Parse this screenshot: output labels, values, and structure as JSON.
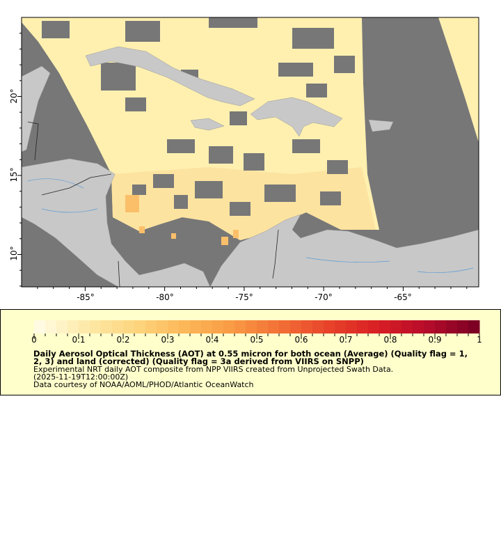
{
  "map": {
    "lon_range": [
      -89,
      -60.3
    ],
    "lat_range": [
      7.9,
      25
    ],
    "x_ticks": [
      "-85°",
      "-80°",
      "-75°",
      "-70°",
      "-65°"
    ],
    "y_ticks": [
      "20°",
      "15°",
      "10°"
    ],
    "colors": {
      "no_data": "#777777",
      "land": "#c8c8c8",
      "rivers": "#5b9bd5",
      "borders": "#222222"
    }
  },
  "legend": {
    "colorbar_ticks": [
      "0",
      "0.1",
      "0.2",
      "0.3",
      "0.4",
      "0.5",
      "0.6",
      "0.7",
      "0.8",
      "0.9",
      "1"
    ],
    "colorbar_range": [
      0,
      1
    ],
    "colormap": [
      "#fffbe2",
      "#fde9a6",
      "#fdd57e",
      "#fcb758",
      "#f89a44",
      "#f26e35",
      "#e8432a",
      "#d81f24",
      "#b80c2a",
      "#7d0024"
    ],
    "title_line1": "Daily Aerosol Optical Thickness (AOT) at 0.55 micron for both ocean (Average) (Quality flag = 1,",
    "title_line2": "2, 3) and land (corrected) (Quality flag = 3a derived from VIIRS on SNPP)",
    "line3": "Experimental NRT daily AOT composite from NPP VIIRS created from Unprojected Swath Data.",
    "line4": "(2025-11-19T12:00:00Z)",
    "line5": "Data courtesy of NOAA/AOML/PHOD/Atlantic OceanWatch"
  }
}
